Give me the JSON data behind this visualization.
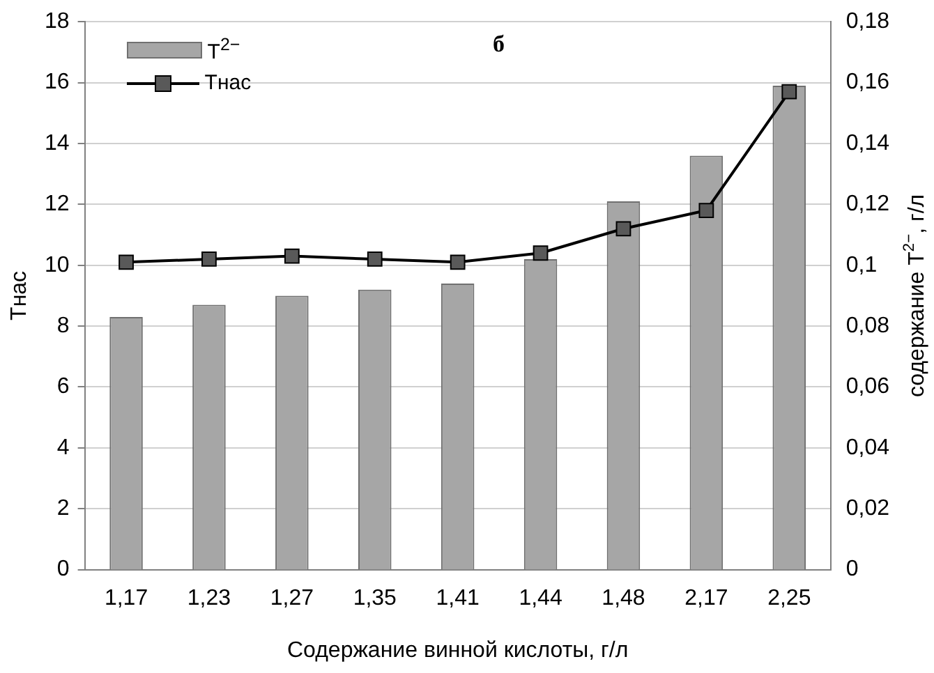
{
  "chart_data": {
    "type": "bar",
    "title": "б",
    "xlabel": "Содержание винной кислоты, г/л",
    "ylabel": "Тнас",
    "y2label": "содержание T$^{2−}$, г/л",
    "categories": [
      "1,17",
      "1,23",
      "1,27",
      "1,35",
      "1,41",
      "1,44",
      "1,48",
      "2,17",
      "2,25"
    ],
    "series": [
      {
        "name": "T$^{2−}$",
        "axis": "y2",
        "color": "#a6a6a6",
        "values": [
          0.083,
          0.087,
          0.09,
          0.092,
          0.094,
          0.102,
          0.121,
          0.136,
          0.159
        ]
      },
      {
        "name": "Тнас",
        "type": "line",
        "axis": "y",
        "color": "#000000",
        "marker": "square",
        "values": [
          10.1,
          10.2,
          10.3,
          10.2,
          10.1,
          10.4,
          11.2,
          11.8,
          15.7
        ]
      }
    ],
    "ylim": [
      0,
      18
    ],
    "yticks": [
      0,
      2,
      4,
      6,
      8,
      10,
      12,
      14,
      16,
      18
    ],
    "y2lim": [
      0,
      0.18
    ],
    "y2ticks": [
      0,
      {
        "value": 0.02,
        "label": "0,02"
      },
      {
        "value": 0.04,
        "label": "0,04"
      },
      {
        "value": 0.06,
        "label": "0,06"
      },
      {
        "value": 0.08,
        "label": "0,08"
      },
      {
        "value": 0.1,
        "label": "0,1"
      },
      {
        "value": 0.12,
        "label": "0,12"
      },
      {
        "value": 0.14,
        "label": "0,14"
      },
      {
        "value": 0.16,
        "label": "0,16"
      },
      {
        "value": 0.18,
        "label": "0,18"
      }
    ],
    "grid": "y",
    "legend": "top left"
  }
}
